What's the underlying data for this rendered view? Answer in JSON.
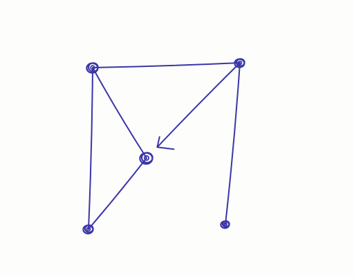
{
  "drawing": {
    "ink_color": "#3a35a8",
    "paper_color": "#fdfdfb",
    "nodes": [
      {
        "id": "top-left",
        "name": "node-top-left"
      },
      {
        "id": "top-right",
        "name": "node-top-right"
      },
      {
        "id": "center",
        "name": "node-center"
      },
      {
        "id": "bottom-left",
        "name": "node-bottom-left"
      },
      {
        "id": "bottom-right",
        "name": "node-bottom-right"
      }
    ],
    "edges": [
      {
        "from": "top-left",
        "to": "top-right",
        "directed": false
      },
      {
        "from": "top-left",
        "to": "bottom-left",
        "directed": false
      },
      {
        "from": "top-left",
        "to": "center",
        "directed": false
      },
      {
        "from": "center",
        "to": "bottom-left",
        "directed": false
      },
      {
        "from": "top-right",
        "to": "center",
        "directed": true
      },
      {
        "from": "top-right",
        "to": "bottom-right",
        "directed": false
      }
    ]
  }
}
